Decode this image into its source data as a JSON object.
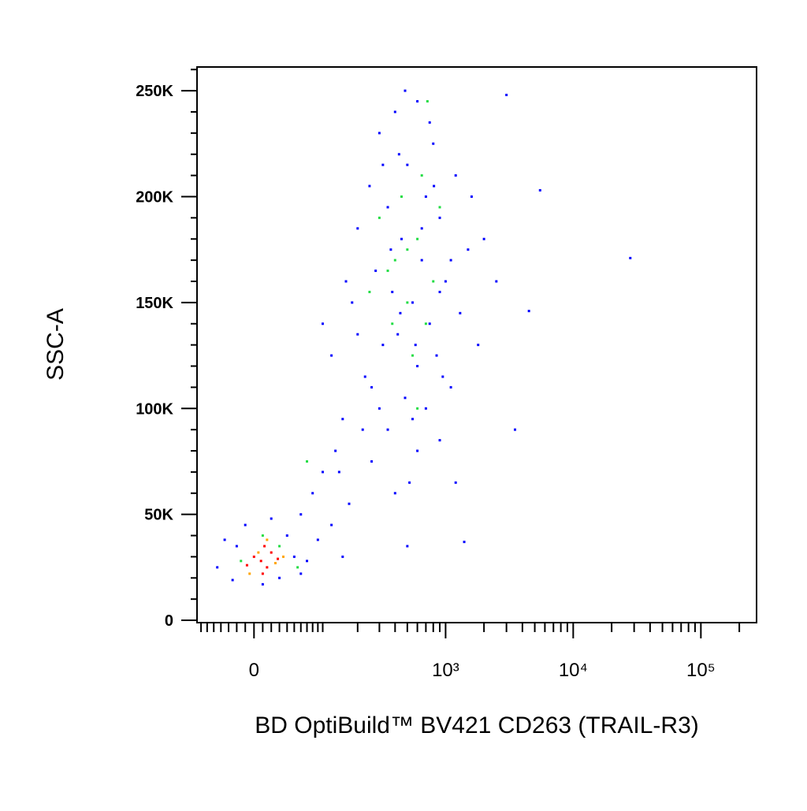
{
  "chart_data": {
    "type": "scatter",
    "x_label": "BD OptiBuild™ BV421 CD263 (TRAIL-R3)",
    "y_label": "SSC-A",
    "x_scale": "biexponential",
    "xlim": [
      -77,
      273000
    ],
    "ylim": [
      -1100,
      261200
    ],
    "xticks": [
      0,
      {
        "value": 1000,
        "label": "10³"
      },
      {
        "value": 10000,
        "label": "10⁴"
      },
      {
        "value": 100000,
        "label": "10⁵"
      }
    ],
    "xminorticks": [
      -70,
      -60,
      -50,
      -40,
      -30,
      -20,
      -10,
      10,
      20,
      30,
      40,
      50,
      60,
      70,
      80,
      90,
      100,
      200,
      300,
      400,
      500,
      600,
      700,
      800,
      900,
      2000,
      3000,
      4000,
      5000,
      6000,
      7000,
      8000,
      9000,
      20000,
      30000,
      40000,
      50000,
      60000,
      70000,
      80000,
      90000,
      200000
    ],
    "yticks": [
      0,
      {
        "value": 50000,
        "label": "50K"
      },
      {
        "value": 100000,
        "label": "100K"
      },
      {
        "value": 150000,
        "label": "150K"
      },
      {
        "value": 200000,
        "label": "200K"
      },
      {
        "value": 250000,
        "label": "250K"
      }
    ],
    "yminorticks": [
      10000,
      20000,
      30000,
      40000,
      60000,
      70000,
      80000,
      90000,
      110000,
      120000,
      130000,
      140000,
      160000,
      170000,
      180000,
      190000,
      210000,
      220000,
      230000,
      240000,
      260000
    ],
    "series": [
      {
        "color": "#0000ff",
        "x": [
          400,
          600,
          300,
          800,
          500,
          250,
          1200,
          700,
          350,
          900,
          200,
          450,
          1500,
          650,
          280,
          1000,
          380,
          550,
          180,
          1300,
          750,
          420,
          320,
          850,
          600,
          230,
          1100,
          480,
          700,
          150,
          350,
          900,
          130,
          260,
          100,
          520,
          80,
          170,
          60,
          120,
          90,
          150,
          70,
          40,
          -20,
          -45,
          30,
          50,
          -10,
          20,
          -35,
          10,
          -25,
          60,
          3000,
          5500,
          28000,
          4500,
          3500,
          1400,
          500,
          1200,
          2000,
          2500,
          1800,
          600,
          400,
          1600,
          320,
          480,
          750,
          900,
          1100,
          200,
          160,
          260,
          550,
          650,
          370,
          440,
          580,
          220,
          140,
          300,
          950,
          810,
          430,
          120,
          100
        ],
        "y": [
          240000,
          245000,
          230000,
          225000,
          215000,
          205000,
          210000,
          200000,
          195000,
          190000,
          185000,
          180000,
          175000,
          170000,
          165000,
          160000,
          155000,
          150000,
          150000,
          145000,
          140000,
          135000,
          130000,
          125000,
          120000,
          115000,
          110000,
          105000,
          100000,
          95000,
          90000,
          85000,
          80000,
          75000,
          70000,
          65000,
          60000,
          55000,
          50000,
          45000,
          38000,
          30000,
          28000,
          40000,
          35000,
          25000,
          20000,
          30000,
          45000,
          48000,
          38000,
          17000,
          19000,
          22000,
          248000,
          203000,
          171000,
          146000,
          90000,
          37000,
          35000,
          65000,
          180000,
          160000,
          130000,
          80000,
          60000,
          200000,
          215000,
          250000,
          235000,
          155000,
          170000,
          135000,
          160000,
          110000,
          95000,
          185000,
          175000,
          145000,
          130000,
          90000,
          70000,
          100000,
          115000,
          205000,
          220000,
          125000,
          140000
        ]
      },
      {
        "color": "#22dd44",
        "x": [
          450,
          600,
          350,
          500,
          700,
          400,
          550,
          300,
          800,
          650,
          380,
          500,
          900,
          250,
          70,
          30,
          -15,
          55,
          10,
          720,
          600
        ],
        "y": [
          200000,
          180000,
          165000,
          150000,
          140000,
          170000,
          125000,
          190000,
          160000,
          210000,
          140000,
          175000,
          195000,
          155000,
          75000,
          35000,
          28000,
          25000,
          40000,
          245000,
          100000
        ]
      },
      {
        "color": "#ffa500",
        "x": [
          5,
          25,
          -5,
          15,
          35
        ],
        "y": [
          32000,
          27000,
          22000,
          38000,
          30000
        ]
      },
      {
        "color": "#ff0000",
        "x": [
          8,
          15,
          0,
          20,
          10,
          -8,
          28,
          12
        ],
        "y": [
          28000,
          25000,
          30000,
          32000,
          22000,
          26000,
          29000,
          35000
        ]
      }
    ]
  }
}
